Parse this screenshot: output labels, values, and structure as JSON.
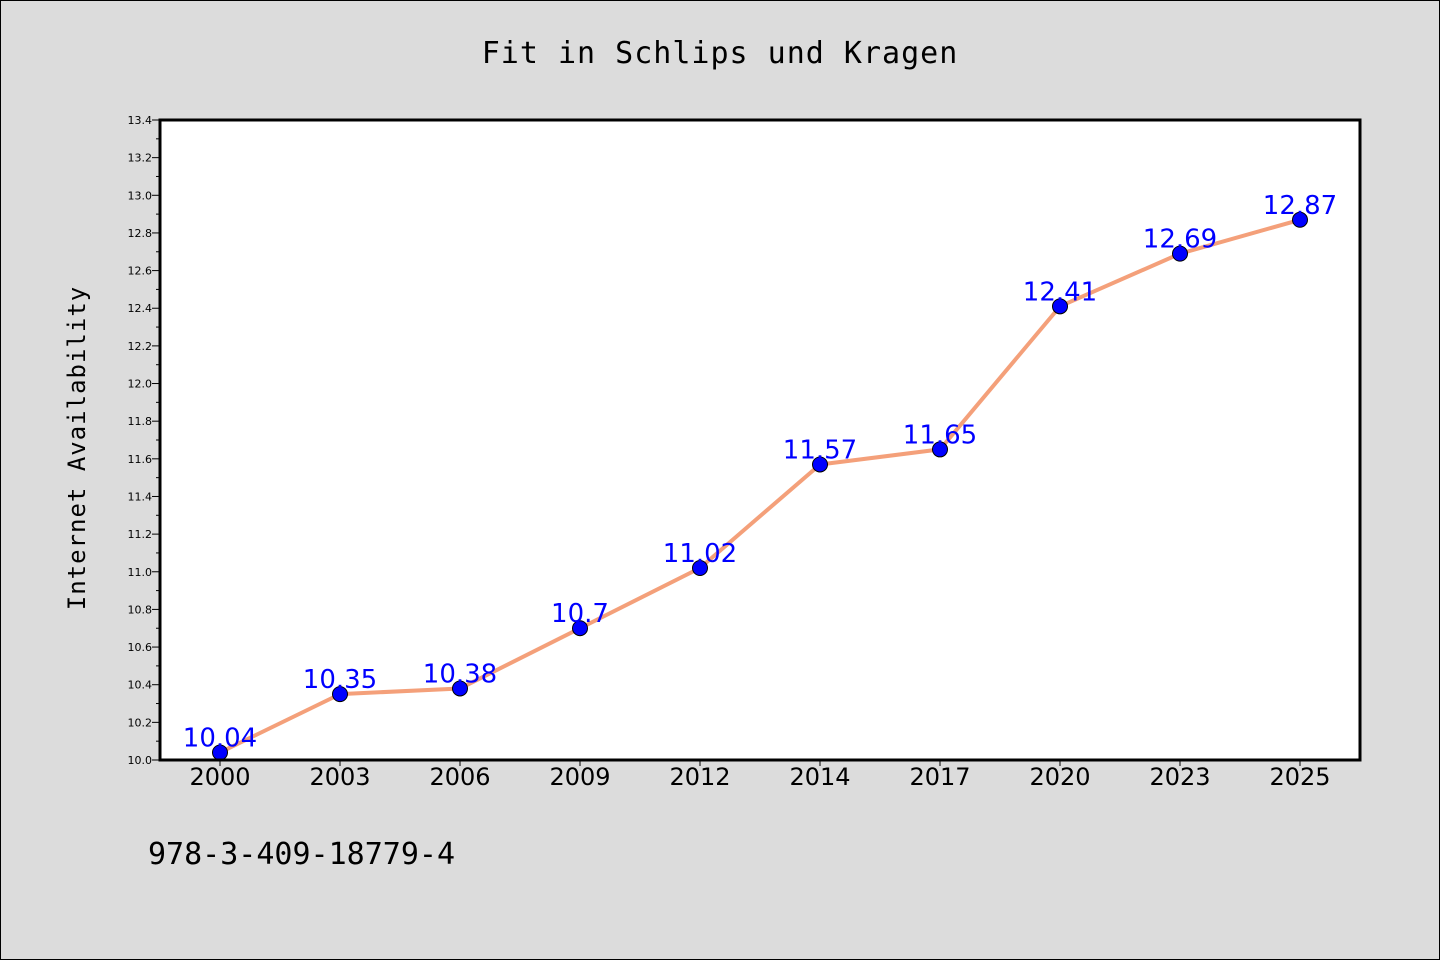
{
  "chart_data": {
    "type": "line",
    "title": "Fit in Schlips und Kragen",
    "xlabel": "",
    "ylabel": "Internet Availability",
    "categories": [
      "2000",
      "2003",
      "2006",
      "2009",
      "2012",
      "2014",
      "2017",
      "2020",
      "2023",
      "2025"
    ],
    "series": [
      {
        "values": [
          10.04,
          10.35,
          10.38,
          10.7,
          11.02,
          11.57,
          11.65,
          12.41,
          12.69,
          12.87
        ],
        "data_labels": [
          "10.04",
          "10.35",
          "10.38",
          "10.7",
          "11.02",
          "11.57",
          "11.65",
          "12.41",
          "12.69",
          "12.87"
        ]
      }
    ],
    "ylim": [
      10.0,
      13.4
    ],
    "yticks": [
      "10.0",
      "10.2",
      "10.4",
      "10.6",
      "10.8",
      "11.0",
      "11.2",
      "11.4",
      "11.6",
      "11.8",
      "12.0",
      "12.2",
      "12.4",
      "12.6",
      "12.8",
      "13.0",
      "13.2",
      "13.4"
    ],
    "grid": false,
    "colors": {
      "line": "#f4a07a",
      "marker": "#0000ff",
      "data_label": "#0000ff",
      "plot_background": "#ffffff",
      "figure_background": "#dcdcdc"
    }
  },
  "footer": {
    "isbn": "978-3-409-18779-4"
  }
}
